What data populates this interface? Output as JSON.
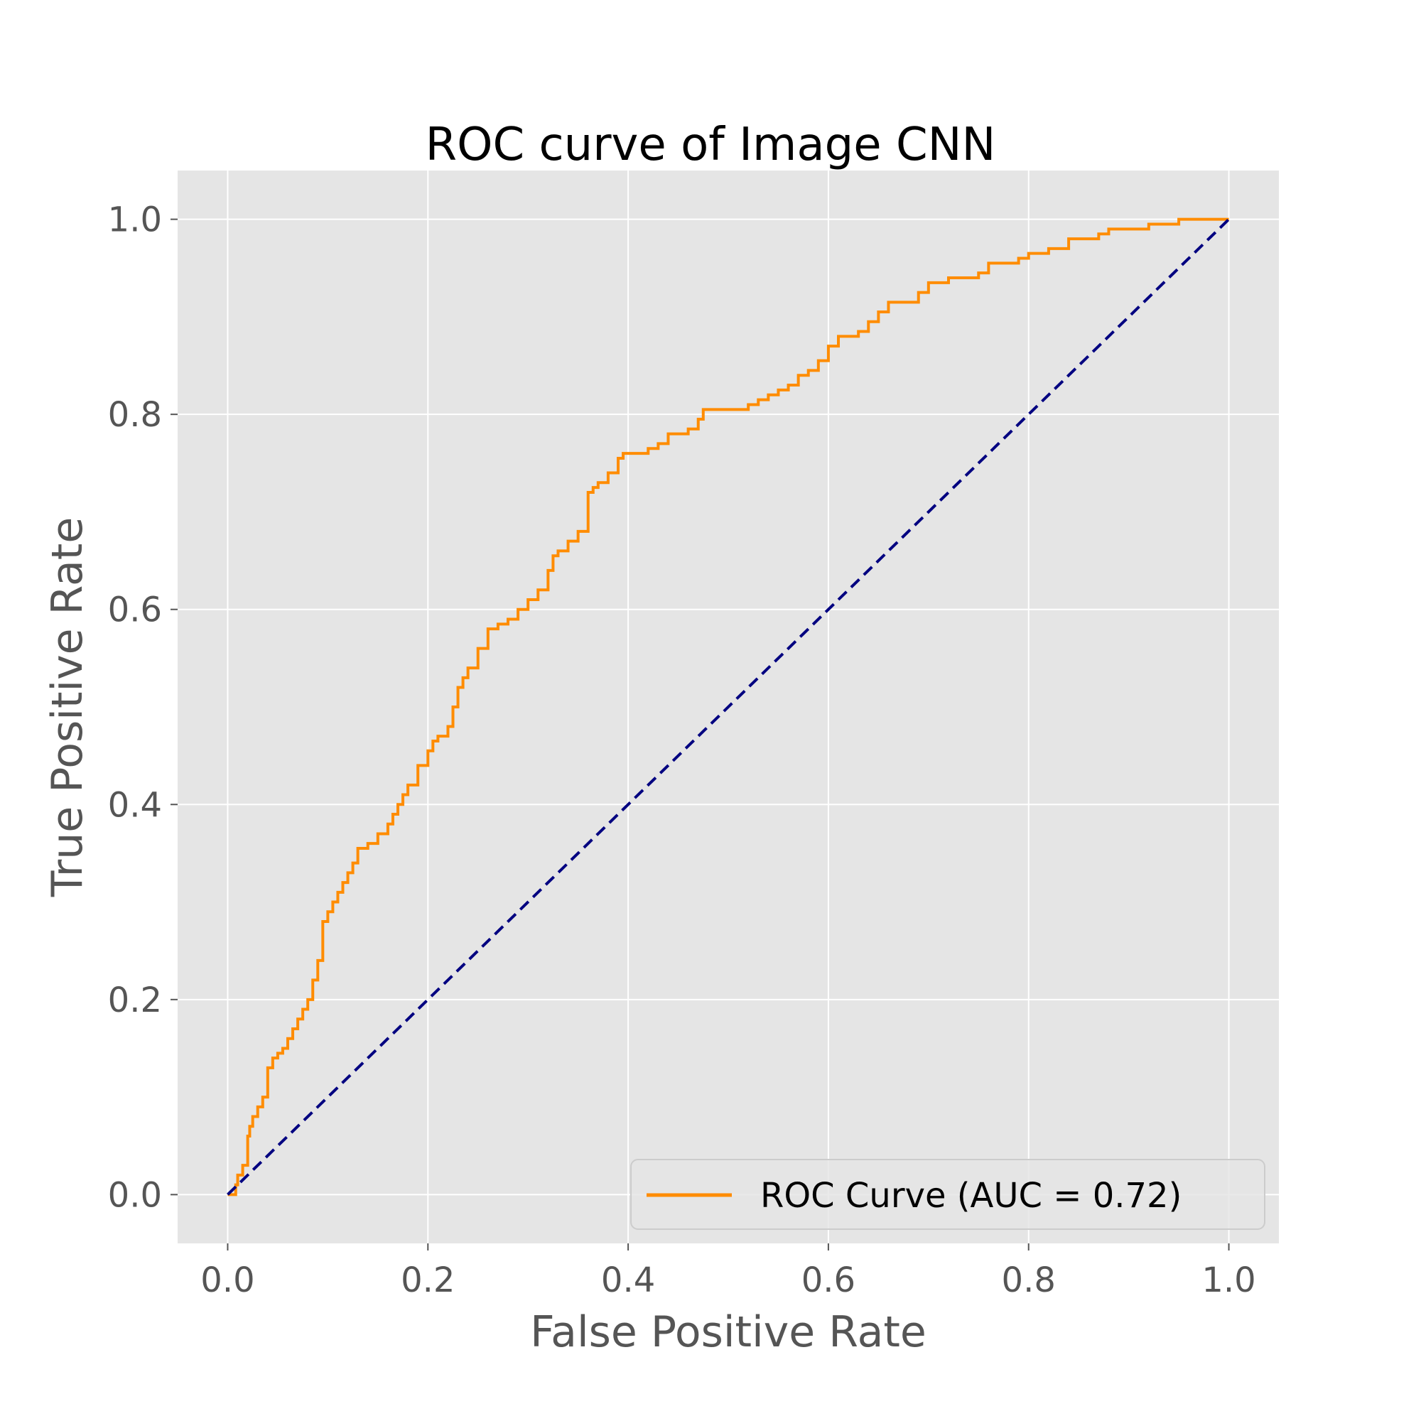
{
  "chart_data": {
    "type": "line",
    "title": "ROC curve of Image CNN",
    "xlabel": "False Positive Rate",
    "ylabel": "True Positive Rate",
    "xlim": [
      -0.05,
      1.05
    ],
    "ylim": [
      -0.05,
      1.05
    ],
    "xticks": [
      0.0,
      0.2,
      0.4,
      0.6,
      0.8,
      1.0
    ],
    "yticks": [
      0.0,
      0.2,
      0.4,
      0.6,
      0.8,
      1.0
    ],
    "xtick_labels": [
      "0.0",
      "0.2",
      "0.4",
      "0.6",
      "0.8",
      "1.0"
    ],
    "ytick_labels": [
      "0.0",
      "0.2",
      "0.4",
      "0.6",
      "0.8",
      "1.0"
    ],
    "grid": true,
    "legend_placement": "lower-right",
    "legend_label": "ROC Curve (AUC = 0.72)",
    "colors": {
      "roc": "#ff8c00",
      "diagonal": "#000080",
      "plot_bg": "#e5e5e5",
      "grid": "#ffffff"
    },
    "series": [
      {
        "name": "ROC Curve (AUC = 0.72)",
        "style": "solid",
        "x": [
          0.0,
          0.008,
          0.01,
          0.015,
          0.02,
          0.022,
          0.025,
          0.03,
          0.035,
          0.04,
          0.045,
          0.05,
          0.055,
          0.06,
          0.065,
          0.07,
          0.075,
          0.08,
          0.085,
          0.09,
          0.095,
          0.1,
          0.105,
          0.11,
          0.115,
          0.12,
          0.125,
          0.13,
          0.14,
          0.15,
          0.16,
          0.165,
          0.17,
          0.175,
          0.18,
          0.19,
          0.2,
          0.205,
          0.21,
          0.22,
          0.225,
          0.23,
          0.235,
          0.24,
          0.25,
          0.26,
          0.27,
          0.28,
          0.29,
          0.3,
          0.31,
          0.32,
          0.325,
          0.33,
          0.34,
          0.35,
          0.36,
          0.365,
          0.37,
          0.38,
          0.39,
          0.395,
          0.4,
          0.42,
          0.43,
          0.44,
          0.46,
          0.47,
          0.475,
          0.5,
          0.52,
          0.53,
          0.54,
          0.55,
          0.56,
          0.57,
          0.58,
          0.59,
          0.6,
          0.61,
          0.63,
          0.64,
          0.65,
          0.66,
          0.68,
          0.69,
          0.7,
          0.72,
          0.75,
          0.76,
          0.79,
          0.8,
          0.82,
          0.84,
          0.87,
          0.88,
          0.92,
          0.95,
          1.0
        ],
        "y": [
          0.0,
          0.01,
          0.02,
          0.03,
          0.06,
          0.07,
          0.08,
          0.09,
          0.1,
          0.13,
          0.14,
          0.145,
          0.15,
          0.16,
          0.17,
          0.18,
          0.19,
          0.2,
          0.22,
          0.24,
          0.28,
          0.29,
          0.3,
          0.31,
          0.32,
          0.33,
          0.34,
          0.355,
          0.36,
          0.37,
          0.38,
          0.39,
          0.4,
          0.41,
          0.42,
          0.44,
          0.455,
          0.465,
          0.47,
          0.48,
          0.5,
          0.52,
          0.53,
          0.54,
          0.56,
          0.58,
          0.585,
          0.59,
          0.6,
          0.61,
          0.62,
          0.64,
          0.655,
          0.66,
          0.67,
          0.68,
          0.72,
          0.725,
          0.73,
          0.74,
          0.755,
          0.76,
          0.76,
          0.765,
          0.77,
          0.78,
          0.785,
          0.795,
          0.805,
          0.805,
          0.81,
          0.815,
          0.82,
          0.825,
          0.83,
          0.84,
          0.845,
          0.855,
          0.87,
          0.88,
          0.885,
          0.895,
          0.905,
          0.915,
          0.915,
          0.925,
          0.935,
          0.94,
          0.945,
          0.955,
          0.96,
          0.965,
          0.97,
          0.98,
          0.985,
          0.99,
          0.995,
          1.0,
          1.0
        ]
      },
      {
        "style": "dashed",
        "x": [
          0.0,
          1.0
        ],
        "y": [
          0.0,
          1.0
        ]
      }
    ]
  }
}
